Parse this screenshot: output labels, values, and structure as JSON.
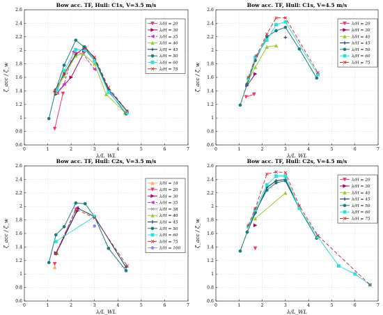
{
  "chart_data": [
    {
      "type": "line",
      "title": "Bow acc. TF, Hull: C1s, V=3.5 m/s",
      "xlabel": "λ/L_WL",
      "ylabel": "ζ̈_acc / ζ̄_w",
      "xlim": [
        0,
        7
      ],
      "ylim": [
        0.6,
        2.6
      ],
      "xticks": [
        "0",
        "1",
        "2",
        "3",
        "4",
        "5",
        "6",
        "7"
      ],
      "yticks": [
        "0.6",
        "0.8",
        "1",
        "1.2",
        "1.4",
        "1.6",
        "1.8",
        "2",
        "2.2",
        "2.4",
        "2.6"
      ],
      "grid": true,
      "legend_position": "top-right",
      "series": [
        {
          "name": "λ/H = 20",
          "color": "#ff3366",
          "marker": "tri-down",
          "dash": "",
          "x": [
            1.3,
            1.65
          ],
          "y": [
            0.84,
            1.36
          ]
        },
        {
          "name": "λ/H = 30",
          "color": "#aa0066",
          "marker": "tri-right",
          "dash": "",
          "x": [
            1.35,
            2.0,
            2.55
          ],
          "y": [
            1.35,
            1.6,
            1.97
          ]
        },
        {
          "name": "λ/H = 35",
          "color": "#cc33cc",
          "marker": "tri-left",
          "dash": "4 2",
          "x": [
            1.4,
            1.7,
            2.1,
            2.5,
            3.0
          ],
          "y": [
            1.37,
            1.5,
            1.98,
            1.95,
            1.72
          ]
        },
        {
          "name": "λ/H = 40",
          "color": "#99cc33",
          "marker": "tri-up",
          "dash": "",
          "x": [
            1.35,
            1.7,
            2.2,
            2.5,
            3.0,
            3.5,
            4.3
          ],
          "y": [
            1.38,
            1.62,
            1.92,
            1.95,
            1.8,
            1.35,
            1.08
          ]
        },
        {
          "name": "λ/H = 45",
          "color": "#003366",
          "marker": "plus",
          "dash": "",
          "x": [
            1.3,
            1.7,
            2.2,
            2.6,
            3.0,
            3.6,
            4.4
          ],
          "y": [
            1.39,
            1.65,
            1.94,
            2.05,
            1.88,
            1.42,
            1.1
          ]
        },
        {
          "name": "λ/H = 50",
          "color": "#1a7a7a",
          "marker": "circle",
          "dash": "",
          "x": [
            1.05,
            1.35,
            1.7,
            2.2,
            2.55,
            3.0,
            3.6,
            4.35
          ],
          "y": [
            0.99,
            1.42,
            1.78,
            2.15,
            2.05,
            1.85,
            1.4,
            1.06
          ]
        },
        {
          "name": "λ/H = 60",
          "color": "#33dddd",
          "marker": "square",
          "dash": "",
          "x": [
            1.4,
            1.7,
            2.2,
            2.6,
            3.0,
            3.6,
            4.4
          ],
          "y": [
            1.42,
            1.7,
            2.01,
            2.0,
            1.85,
            1.38,
            1.08
          ]
        },
        {
          "name": "λ/H = 75",
          "color": "#cc3333",
          "marker": "x",
          "dash": "5 3",
          "x": [
            1.3,
            1.7,
            2.2,
            2.6,
            3.0,
            3.6,
            4.4
          ],
          "y": [
            1.4,
            1.65,
            1.95,
            2.03,
            1.9,
            1.45,
            1.1
          ]
        }
      ]
    },
    {
      "type": "line",
      "title": "Bow acc. TF, Hull: C1s, V=4.5 m/s",
      "xlabel": "λ/L_WL",
      "ylabel": "ζ̈_acc / ζ̄_w",
      "xlim": [
        0,
        7
      ],
      "ylim": [
        0.6,
        2.6
      ],
      "xticks": [
        "0",
        "1",
        "2",
        "3",
        "4",
        "5",
        "6",
        "7"
      ],
      "yticks": [
        "0.6",
        "0.8",
        "1",
        "1.2",
        "1.4",
        "1.6",
        "1.8",
        "2",
        "2.2",
        "2.4",
        "2.6"
      ],
      "grid": true,
      "legend_position": "top-right",
      "series": [
        {
          "name": "λ/H = 20",
          "color": "#ff3366",
          "marker": "tri-down",
          "dash": "",
          "x": [
            1.3,
            1.65
          ],
          "y": [
            1.31,
            1.35
          ]
        },
        {
          "name": "λ/H = 30",
          "color": "#aa0066",
          "marker": "tri-right",
          "dash": "",
          "x": [
            1.35,
            1.7
          ],
          "y": [
            1.48,
            1.65
          ]
        },
        {
          "name": "λ/H = 40",
          "color": "#99cc33",
          "marker": "tri-up",
          "dash": "",
          "x": [
            1.4,
            1.7,
            2.2,
            2.6
          ],
          "y": [
            1.55,
            1.75,
            2.05,
            2.07
          ]
        },
        {
          "name": "λ/H = 45",
          "color": "#003366",
          "marker": "plus",
          "dash": "",
          "x": [
            3.0
          ],
          "y": [
            2.19
          ]
        },
        {
          "name": "λ/H = 50",
          "color": "#1a7a7a",
          "marker": "circle",
          "dash": "",
          "x": [
            1.05,
            1.35,
            1.7,
            2.2,
            2.6,
            3.0,
            3.6,
            4.35
          ],
          "y": [
            1.19,
            1.5,
            1.85,
            2.2,
            2.29,
            2.34,
            2.02,
            1.59
          ]
        },
        {
          "name": "λ/H = 60",
          "color": "#33dddd",
          "marker": "square",
          "dash": "",
          "x": [
            1.4,
            1.7,
            2.2,
            2.6,
            3.0,
            4.4
          ],
          "y": [
            1.58,
            1.9,
            2.15,
            2.38,
            2.42,
            1.64
          ]
        },
        {
          "name": "λ/H = 75",
          "color": "#cc3333",
          "marker": "x",
          "dash": "5 3",
          "x": [
            1.4,
            1.75,
            2.2,
            2.6,
            3.0,
            4.4
          ],
          "y": [
            1.6,
            1.92,
            2.24,
            2.48,
            2.48,
            1.67
          ]
        }
      ]
    },
    {
      "type": "line",
      "title": "Bow acc. TF, Hull: C2s, V=3.5 m/s",
      "xlabel": "λ/L_WL",
      "ylabel": "ζ̈_acc / ζ̄_w",
      "xlim": [
        0,
        7
      ],
      "ylim": [
        0.6,
        2.6
      ],
      "xticks": [
        "0",
        "1",
        "2",
        "3",
        "4",
        "5",
        "6",
        "7"
      ],
      "yticks": [
        "0.6",
        "0.8",
        "1",
        "1.2",
        "1.4",
        "1.6",
        "1.8",
        "2",
        "2.2",
        "2.4",
        "2.6"
      ],
      "grid": true,
      "legend_position": "right",
      "series": [
        {
          "name": "λ/H = 18",
          "color": "#ffaa66",
          "marker": "tri-up",
          "dash": "",
          "x": [
            1.3
          ],
          "y": [
            1.1
          ]
        },
        {
          "name": "λ/H = 20",
          "color": "#ff3366",
          "marker": "tri-down",
          "dash": "",
          "x": [
            1.3
          ],
          "y": [
            1.15
          ]
        },
        {
          "name": "λ/H = 30",
          "color": "#aa0066",
          "marker": "tri-right",
          "dash": "",
          "x": [
            1.35,
            2.25
          ],
          "y": [
            1.31,
            1.93
          ]
        },
        {
          "name": "λ/H = 35",
          "color": "#cc33cc",
          "marker": "tri-left",
          "dash": "4 2",
          "x": [
            1.35,
            2.25
          ],
          "y": [
            1.31,
            1.98
          ]
        },
        {
          "name": "λ/H = 38",
          "color": "#999999",
          "marker": "x",
          "dash": "",
          "x": [
            2.2
          ],
          "y": [
            1.92
          ]
        },
        {
          "name": "λ/H = 40",
          "color": "#99cc33",
          "marker": "tri-up",
          "dash": "",
          "x": [
            1.4
          ],
          "y": [
            1.31
          ]
        },
        {
          "name": "λ/H = 45",
          "color": "#003366",
          "marker": "plus",
          "dash": "",
          "x": [
            1.35,
            2.3,
            3.0,
            4.35
          ],
          "y": [
            1.3,
            1.97,
            1.85,
            1.1
          ]
        },
        {
          "name": "λ/H = 50",
          "color": "#1a7a7a",
          "marker": "circle",
          "dash": "",
          "x": [
            1.05,
            1.35,
            1.7,
            2.2,
            2.6,
            3.0,
            3.6,
            4.35
          ],
          "y": [
            1.17,
            1.58,
            1.7,
            2.05,
            2.04,
            1.85,
            1.38,
            1.05
          ]
        },
        {
          "name": "λ/H = 60",
          "color": "#33dddd",
          "marker": "square",
          "dash": "",
          "x": [
            1.35,
            3.0
          ],
          "y": [
            1.48,
            1.85
          ]
        },
        {
          "name": "λ/H = 75",
          "color": "#cc3333",
          "marker": "x",
          "dash": "5 3",
          "x": [
            1.35,
            2.2,
            3.0,
            4.4
          ],
          "y": [
            1.3,
            1.96,
            1.83,
            1.12
          ]
        },
        {
          "name": "λ/H = 100",
          "color": "#8888ff",
          "marker": "circle",
          "dash": "",
          "x": [
            3.0
          ],
          "y": [
            1.71
          ]
        }
      ]
    },
    {
      "type": "line",
      "title": "Bow acc. TF, Hull: C2s, V=4.5 m/s",
      "xlabel": "λ/L_WL",
      "ylabel": "ζ̈_acc / ζ̄_w",
      "xlim": [
        0,
        7
      ],
      "ylim": [
        0.6,
        2.6
      ],
      "xticks": [
        "0",
        "1",
        "2",
        "3",
        "4",
        "5",
        "6",
        "7"
      ],
      "yticks": [
        "0.6",
        "0.8",
        "1",
        "1.2",
        "1.4",
        "1.6",
        "1.8",
        "2",
        "2.2",
        "2.4",
        "2.6"
      ],
      "grid": true,
      "legend_position": "top-right",
      "series": [
        {
          "name": "λ/H = 20",
          "color": "#ff3366",
          "marker": "tri-down",
          "dash": "",
          "x": [
            1.7
          ],
          "y": [
            1.38
          ]
        },
        {
          "name": "λ/H = 30",
          "color": "#aa0066",
          "marker": "tri-right",
          "dash": "",
          "x": [
            1.7
          ],
          "y": [
            1.72
          ]
        },
        {
          "name": "λ/H = 40",
          "color": "#99cc33",
          "marker": "tri-up",
          "dash": "",
          "x": [
            1.7,
            3.0
          ],
          "y": [
            1.82,
            2.2
          ]
        },
        {
          "name": "λ/H = 45",
          "color": "#003366",
          "marker": "plus",
          "dash": "",
          "x": [
            1.35,
            1.7,
            2.2,
            2.6,
            3.0,
            3.6
          ],
          "y": [
            1.62,
            1.9,
            2.28,
            2.38,
            2.4,
            1.97
          ]
        },
        {
          "name": "λ/H = 50",
          "color": "#1a7a7a",
          "marker": "circle",
          "dash": "",
          "x": [
            1.05,
            1.35,
            1.7,
            2.2,
            2.6,
            3.0,
            3.6,
            4.35
          ],
          "y": [
            1.34,
            1.62,
            1.92,
            2.24,
            2.35,
            2.38,
            1.97,
            1.53
          ]
        },
        {
          "name": "λ/H = 60",
          "color": "#33dddd",
          "marker": "square",
          "dash": "",
          "x": [
            1.4,
            1.7,
            2.2,
            2.6,
            3.0,
            3.6,
            4.4,
            5.3,
            6.0,
            6.65
          ],
          "y": [
            1.7,
            1.95,
            2.32,
            2.45,
            2.45,
            1.97,
            1.55,
            1.12,
            1.0,
            0.84
          ]
        },
        {
          "name": "λ/H = 75",
          "color": "#cc3333",
          "marker": "x",
          "dash": "5 3",
          "x": [
            1.4,
            1.7,
            2.2,
            2.6,
            3.0,
            3.6,
            4.4,
            6.65
          ],
          "y": [
            1.72,
            1.97,
            2.48,
            2.51,
            2.5,
            2.01,
            1.57,
            0.84
          ]
        }
      ]
    }
  ]
}
